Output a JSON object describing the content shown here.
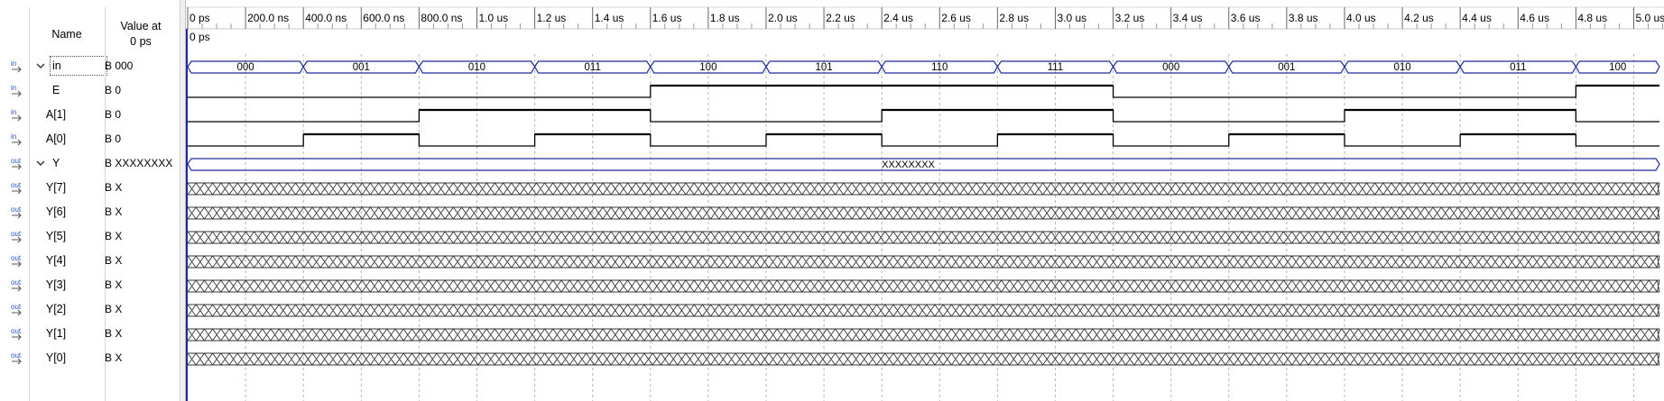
{
  "headers": {
    "name": "Name",
    "value_at": "Value at",
    "value_time": "0 ps"
  },
  "cursor": {
    "label": "0 ps"
  },
  "timeline": {
    "ticks": [
      "0 ps",
      "200.0 ns",
      "400.0 ns",
      "600.0 ns",
      "800.0 ns",
      "1.0 us",
      "1.2 us",
      "1.4 us",
      "1.6 us",
      "1.8 us",
      "2.0 us",
      "2.2 us",
      "2.4 us",
      "2.6 us",
      "2.8 us",
      "3.0 us",
      "3.2 us",
      "3.4 us",
      "3.6 us",
      "3.8 us",
      "4.0 us",
      "4.2 us",
      "4.4 us",
      "4.6 us",
      "4.8 us",
      "5.0 us"
    ],
    "end_ns": 5000,
    "tick_step_ns": 200
  },
  "signals": [
    {
      "name": "in",
      "kind": "in",
      "group": true,
      "expanded": true,
      "selected": true,
      "value": "B 000",
      "wave": "bus",
      "bus_segments": [
        "000",
        "001",
        "010",
        "011",
        "100",
        "101",
        "110",
        "111",
        "000",
        "001",
        "010",
        "011",
        "100"
      ],
      "bus_period_ns": 400
    },
    {
      "name": "E",
      "kind": "in",
      "value": "B 0",
      "wave": "bit",
      "transitions_ns": [
        [
          0,
          0
        ],
        [
          1600,
          1
        ],
        [
          3200,
          0
        ],
        [
          4800,
          1
        ]
      ]
    },
    {
      "name": "A[1]",
      "kind": "in",
      "value": "B 0",
      "wave": "bit",
      "transitions_ns": [
        [
          0,
          0
        ],
        [
          800,
          1
        ],
        [
          1600,
          0
        ],
        [
          2400,
          1
        ],
        [
          3200,
          0
        ],
        [
          4000,
          1
        ],
        [
          4800,
          0
        ]
      ]
    },
    {
      "name": "A[0]",
      "kind": "in",
      "value": "B 0",
      "wave": "bit",
      "transitions_ns": [
        [
          0,
          0
        ],
        [
          400,
          1
        ],
        [
          800,
          0
        ],
        [
          1200,
          1
        ],
        [
          1600,
          0
        ],
        [
          2000,
          1
        ],
        [
          2400,
          0
        ],
        [
          2800,
          1
        ],
        [
          3200,
          0
        ],
        [
          3600,
          1
        ],
        [
          4000,
          0
        ],
        [
          4400,
          1
        ],
        [
          4800,
          0
        ]
      ]
    },
    {
      "name": "Y",
      "kind": "out",
      "group": true,
      "expanded": true,
      "value": "B XXXXXXXX",
      "wave": "busx",
      "bus_label": "XXXXXXXX",
      "bus_label_ns": 2400
    },
    {
      "name": "Y[7]",
      "kind": "out",
      "value": "B X",
      "wave": "x"
    },
    {
      "name": "Y[6]",
      "kind": "out",
      "value": "B X",
      "wave": "x"
    },
    {
      "name": "Y[5]",
      "kind": "out",
      "value": "B X",
      "wave": "x"
    },
    {
      "name": "Y[4]",
      "kind": "out",
      "value": "B X",
      "wave": "x"
    },
    {
      "name": "Y[3]",
      "kind": "out",
      "value": "B X",
      "wave": "x"
    },
    {
      "name": "Y[2]",
      "kind": "out",
      "value": "B X",
      "wave": "x"
    },
    {
      "name": "Y[1]",
      "kind": "out",
      "value": "B X",
      "wave": "x"
    },
    {
      "name": "Y[0]",
      "kind": "out",
      "value": "B X",
      "wave": "x"
    }
  ],
  "colors": {
    "bus": "#1f2a9a",
    "bit": "#000000",
    "grid": "#b5b5b5",
    "cursor": "#1f2a9a",
    "icon_in": "#2a56c6",
    "icon_out": "#2a56c6"
  }
}
